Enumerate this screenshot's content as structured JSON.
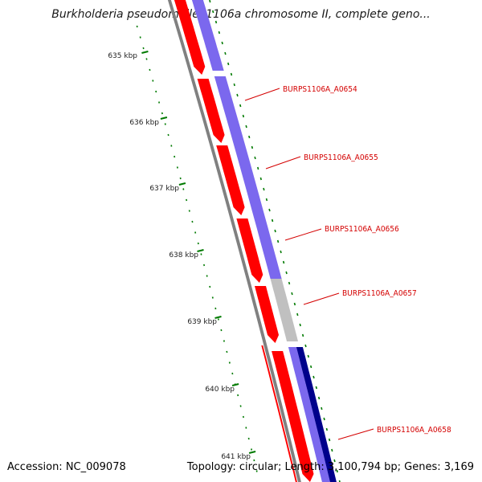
{
  "title": "Burkholderia pseudomallei 1106a chromosome II, complete geno...",
  "footer": {
    "accession": "Accession: NC_009078",
    "stats": "Topology: circular; Length: 3,100,794 bp; Genes: 3,169"
  },
  "colors": {
    "backbone": "#808080",
    "cds_red": "#ff0000",
    "blast_purple": "#7b68ee",
    "blast_grey": "#c0c0c0",
    "blast_navy": "#00008b",
    "gc_green": "#007a00",
    "gene_label": "#d40000",
    "leader_line": "#d40000"
  },
  "scale_ticks": [
    "635 kbp",
    "636 kbp",
    "637 kbp",
    "638 kbp",
    "639 kbp",
    "640 kbp",
    "641 kbp"
  ],
  "genes": [
    "BURPS1106A_A0654",
    "BURPS1106A_A0655",
    "BURPS1106A_A0656",
    "BURPS1106A_A0657",
    "BURPS1106A_A0658"
  ]
}
